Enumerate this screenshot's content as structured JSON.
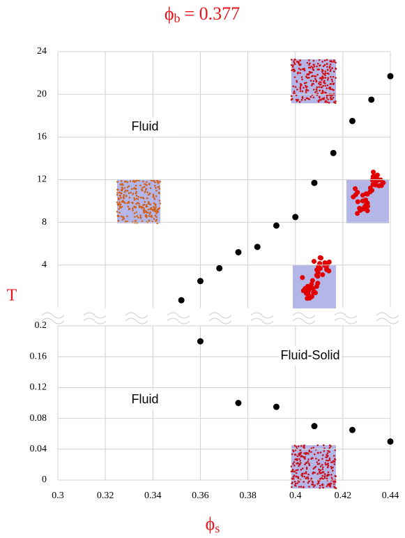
{
  "chart_data": [
    {
      "type": "scatter",
      "title": "ϕ",
      "title_subscript": "b",
      "title_rest": "= 0.377",
      "y_label": "T",
      "annotations": [
        "Fluid"
      ],
      "x": [
        0.352,
        0.36,
        0.368,
        0.376,
        0.384,
        0.392,
        0.4,
        0.408,
        0.416,
        0.424,
        0.432,
        0.44
      ],
      "values": [
        0.7,
        2.5,
        3.7,
        5.2,
        5.7,
        7.7,
        8.5,
        11.7,
        14.5,
        17.5,
        19.5,
        21.7
      ],
      "color": "#000000",
      "xlim": [
        0.3,
        0.44
      ],
      "ylim": [
        0,
        24
      ],
      "yticks": [
        4,
        8,
        12,
        16,
        20,
        24
      ],
      "grid": true
    },
    {
      "type": "scatter",
      "x_label": "ϕ",
      "x_label_subscript": "s",
      "annotations": [
        "Fluid",
        "Fluid-Solid"
      ],
      "x": [
        0.36,
        0.376,
        0.392,
        0.408,
        0.424,
        0.44
      ],
      "values": [
        0.18,
        0.1,
        0.095,
        0.07,
        0.065,
        0.05
      ],
      "color": "#000000",
      "xlim": [
        0.3,
        0.44
      ],
      "xticks": [
        0.3,
        0.32,
        0.34,
        0.36,
        0.38,
        0.4,
        0.42,
        0.44
      ],
      "ylim": [
        0,
        0.2
      ],
      "yticks": [
        0,
        0.04,
        0.08,
        0.12,
        0.16,
        0.2
      ],
      "grid": true
    }
  ]
}
